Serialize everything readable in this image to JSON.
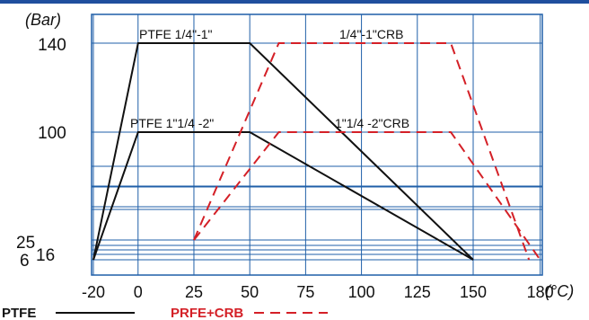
{
  "chart_data": {
    "type": "line",
    "ylabel": "(Bar)",
    "xlabel": "(°C)",
    "x_ticks": [
      "-20",
      "0",
      "25",
      "50",
      "75",
      "100",
      "125",
      "150",
      "180"
    ],
    "y_ticks": [
      {
        "label": "140",
        "value": 140
      },
      {
        "label": "100",
        "value": 100
      },
      {
        "label": "25",
        "value": 25
      },
      {
        "label": "16",
        "value": 16
      },
      {
        "label": "6",
        "value": 6
      }
    ],
    "xlim": [
      -20,
      180
    ],
    "ylim": [
      6,
      150
    ],
    "series": [
      {
        "name": "PTFE 1/4\"-1\"",
        "group": "PTFE",
        "points": [
          [
            -20,
            6
          ],
          [
            0,
            140
          ],
          [
            50,
            140
          ],
          [
            150,
            6
          ]
        ]
      },
      {
        "name": "PTFE 1\"1/4 -2\"",
        "group": "PTFE",
        "points": [
          [
            -20,
            6
          ],
          [
            0,
            100
          ],
          [
            50,
            100
          ],
          [
            150,
            6
          ]
        ]
      },
      {
        "name": "1/4\"-1\"CRB",
        "group": "PRFE+CRB",
        "points": [
          [
            25,
            25
          ],
          [
            63,
            140
          ],
          [
            140,
            140
          ],
          [
            175,
            6
          ]
        ]
      },
      {
        "name": "1\"1/4 -2\"CRB",
        "group": "PRFE+CRB",
        "points": [
          [
            25,
            25
          ],
          [
            63,
            100
          ],
          [
            140,
            100
          ],
          [
            180,
            6
          ]
        ]
      }
    ],
    "legend": [
      {
        "label": "PTFE",
        "color": "#111111",
        "style": "solid"
      },
      {
        "label": "PRFE+CRB",
        "color": "#d42027",
        "style": "dashed"
      }
    ],
    "colors": {
      "ptfe": "#111111",
      "crb": "#d42027",
      "grid": "#1f5fa8"
    },
    "grid": true
  }
}
